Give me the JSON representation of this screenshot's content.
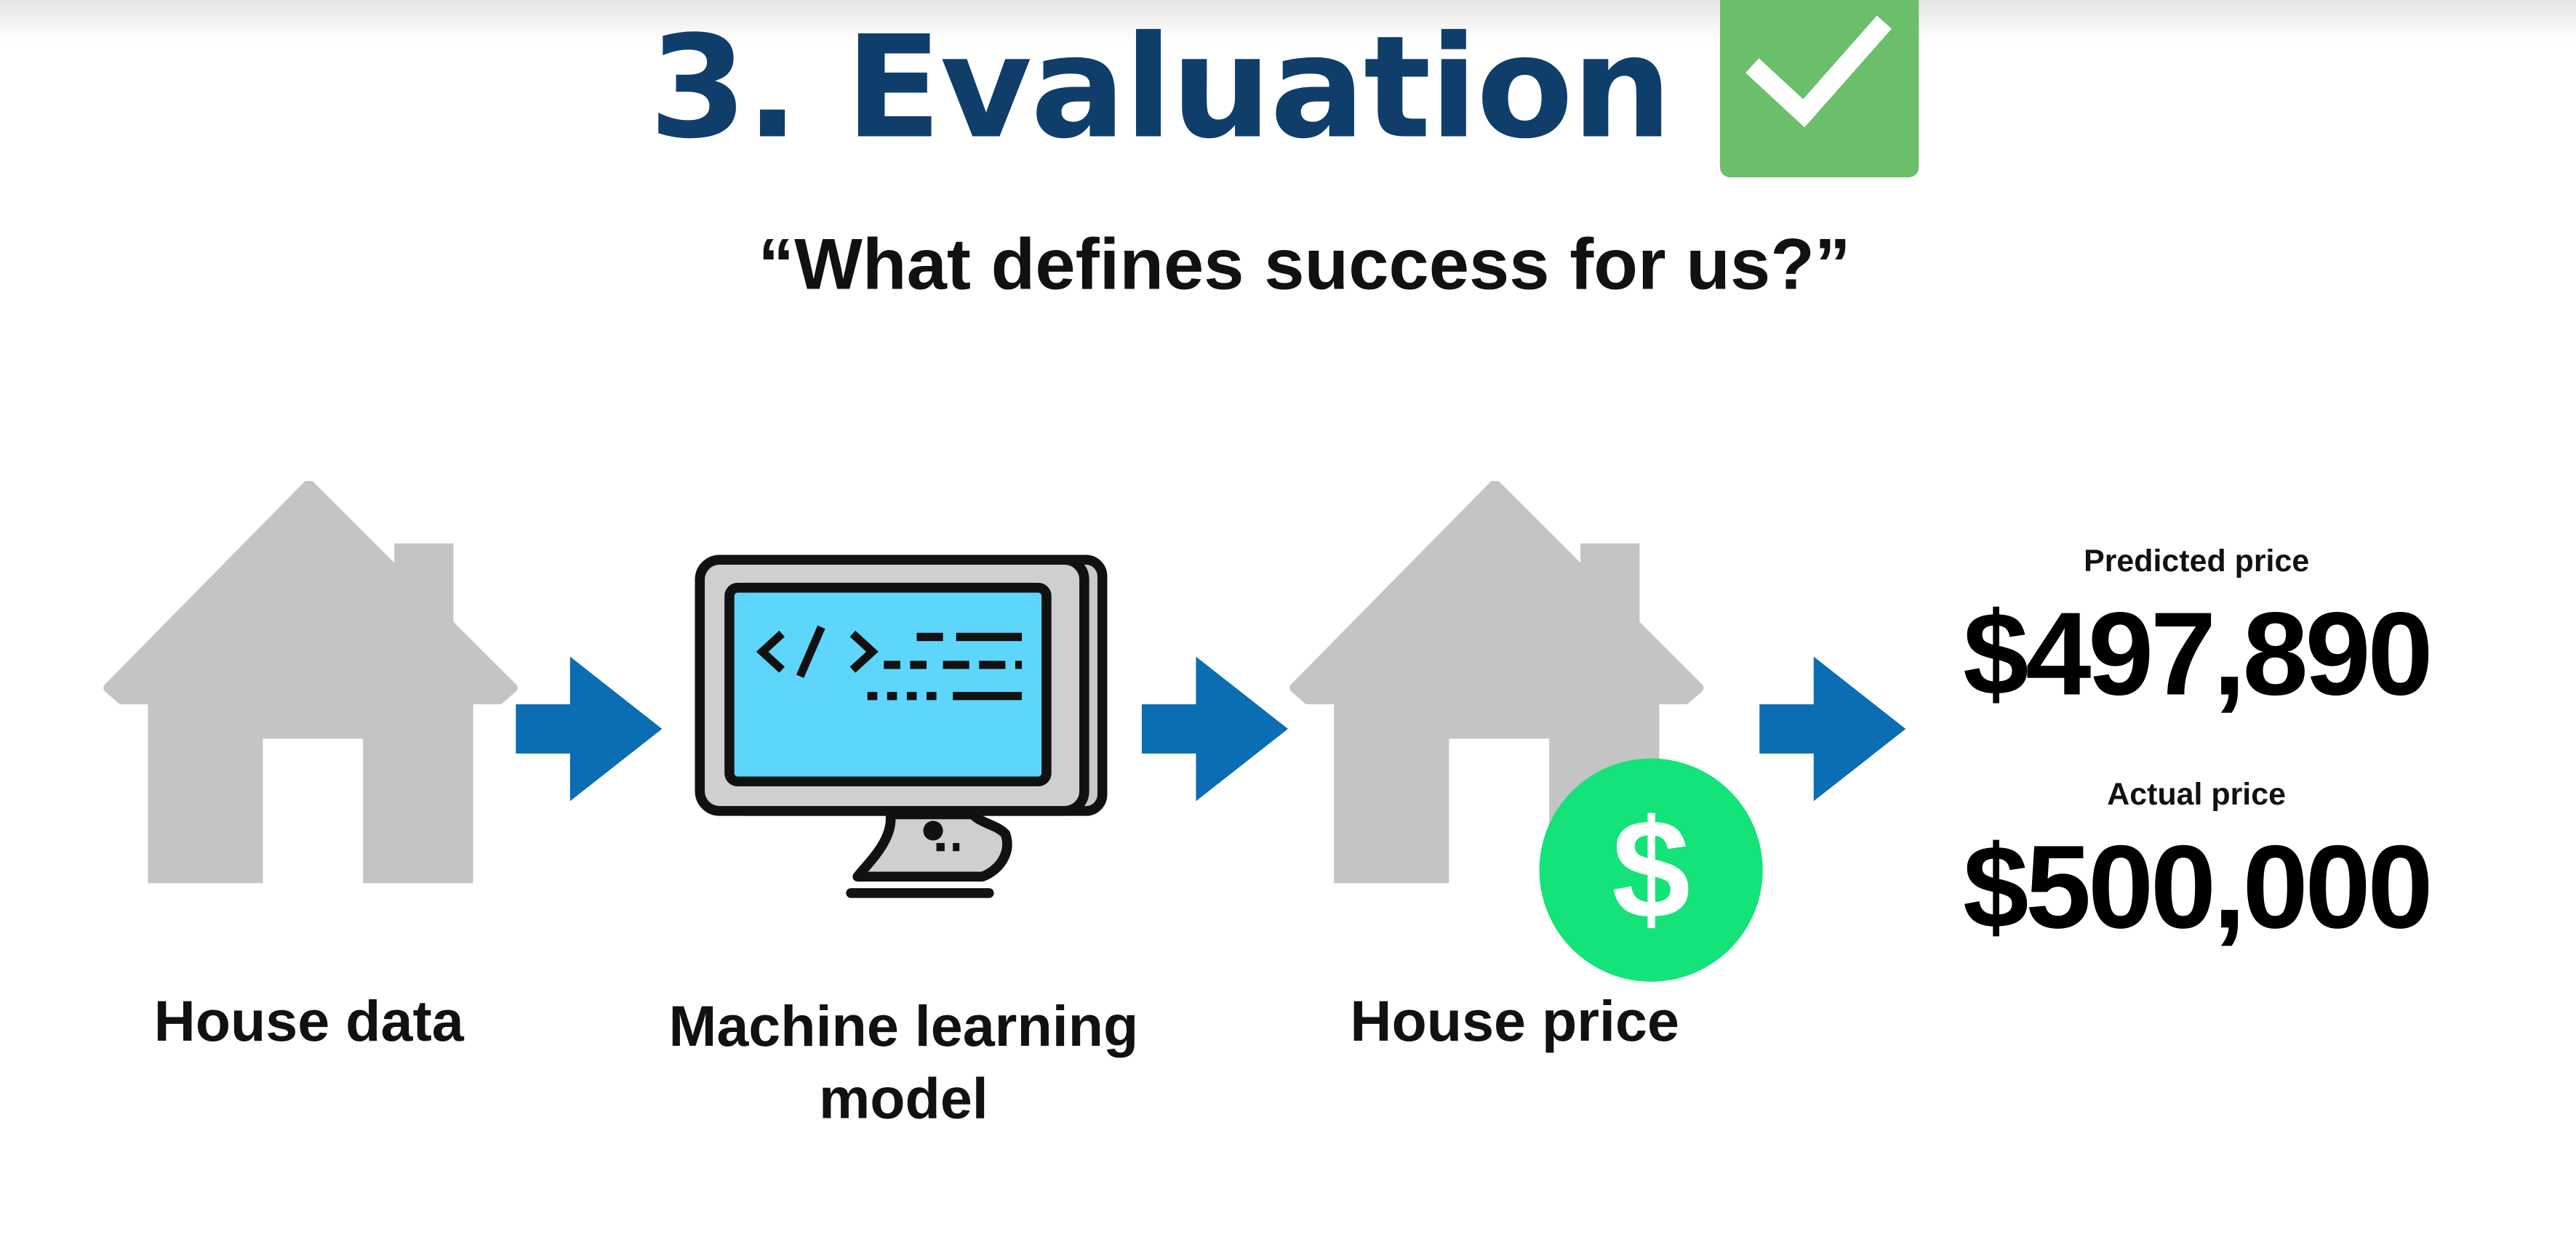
{
  "slide": {
    "title": "3. Evaluation",
    "subtitle": "“What defines success for us?”"
  },
  "flow": {
    "steps": [
      {
        "label": "House data",
        "icon": "house-icon"
      },
      {
        "label": "Machine learning model",
        "icon": "computer-code-icon"
      },
      {
        "label": "House price",
        "icon": "house-dollar-icon"
      }
    ]
  },
  "prices": {
    "predicted_label": "Predicted price",
    "predicted_value": "$497,890",
    "actual_label": "Actual price",
    "actual_value": "$500,000"
  },
  "colors": {
    "title": "#0f3e6b",
    "check_badge": "#6bbf6a",
    "arrow": "#0b6db3",
    "house": "#c4c4c4",
    "screen": "#5ed6fb",
    "dollar_coin": "#14e37a"
  }
}
